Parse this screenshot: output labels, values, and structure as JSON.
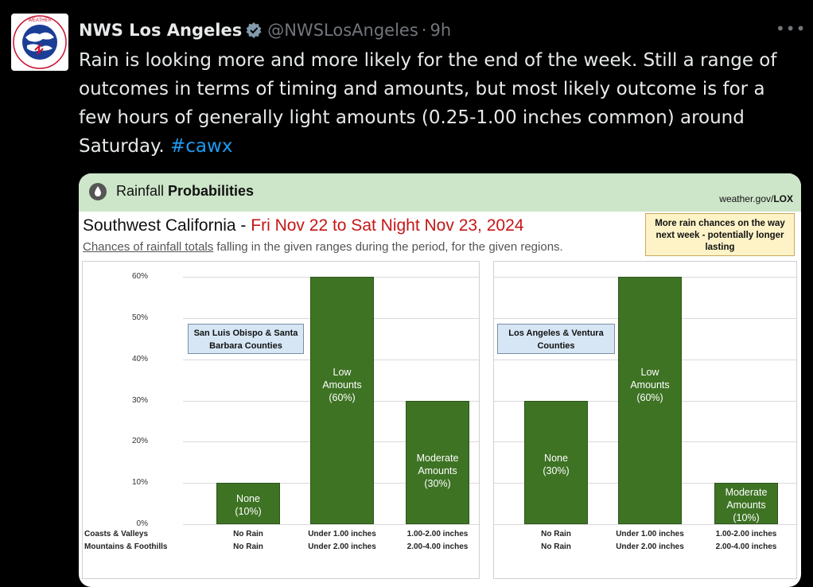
{
  "tweet": {
    "author_name": "NWS Los Angeles",
    "handle": "@NWSLosAngeles",
    "separator": "·",
    "time": "9h",
    "more_label": "•••",
    "text_main": "Rain is looking more and more likely for the end of the week. Still a range of outcomes in terms of timing and amounts, but most likely outcome is for a few hours of generally light amounts (0.25-1.00 inches common) around Saturday. ",
    "hashtag": "#cawx",
    "avatar_icon": "nws-logo-icon",
    "verified_icon": "verified-badge-icon",
    "avatar_lettering": "NATIONAL WEATHER SERVICE"
  },
  "card": {
    "header_prefix": "Rainfall ",
    "header_bold": "Probabilities",
    "url_prefix": "weather.gov/",
    "url_bold": "LOX",
    "region_prefix": "Southwest California - ",
    "region_dates": "Fri Nov 22 to Sat Night Nov 23, 2024",
    "subtitle_underlined": "Chances of rainfall totals",
    "subtitle_rest": " falling in the given ranges during the period, for the given regions.",
    "note": "More rain chances on the way next week - potentially longer lasting",
    "colors": {
      "header_bg": "#cde6c9",
      "bar": "#3e7324",
      "dates": "#c51616",
      "county_box": "#d6e6f5",
      "note_bg": "#fef3c7"
    },
    "row_labels": [
      "Coasts & Valleys",
      "Mountains & Foothills"
    ]
  },
  "chart_data": [
    {
      "type": "bar",
      "region": "San Luis Obispo & Santa Barbara Counties",
      "y_ticks": [
        "60%",
        "50%",
        "40%",
        "30%",
        "20%",
        "10%",
        "0%"
      ],
      "ylim": [
        0,
        60
      ],
      "categories": [
        {
          "label": "None (10%)",
          "line1": "None",
          "line2": "(10%)",
          "line3": "",
          "coasts": "No Rain",
          "mountains": "No Rain"
        },
        {
          "label": "Low Amounts (60%)",
          "line1": "Low",
          "line2": "Amounts",
          "line3": "(60%)",
          "coasts": "Under 1.00 inches",
          "mountains": "Under 2.00 inches"
        },
        {
          "label": "Moderate Amounts (30%)",
          "line1": "Moderate",
          "line2": "Amounts",
          "line3": "(30%)",
          "coasts": "1.00-2.00 inches",
          "mountains": "2.00-4.00 inches"
        }
      ],
      "values": [
        10,
        60,
        30
      ]
    },
    {
      "type": "bar",
      "region": "Los Angeles & Ventura Counties",
      "y_ticks": [],
      "ylim": [
        0,
        60
      ],
      "categories": [
        {
          "label": "None (30%)",
          "line1": "None",
          "line2": "(30%)",
          "line3": "",
          "coasts": "No Rain",
          "mountains": "No Rain"
        },
        {
          "label": "Low Amounts (60%)",
          "line1": "Low",
          "line2": "Amounts",
          "line3": "(60%)",
          "coasts": "Under 1.00 inches",
          "mountains": "Under 2.00 inches"
        },
        {
          "label": "Moderate Amounts (10%)",
          "line1": "Moderate",
          "line2": "Amounts",
          "line3": "(10%)",
          "coasts": "1.00-2.00 inches",
          "mountains": "2.00-4.00 inches"
        }
      ],
      "values": [
        30,
        60,
        10
      ]
    }
  ]
}
